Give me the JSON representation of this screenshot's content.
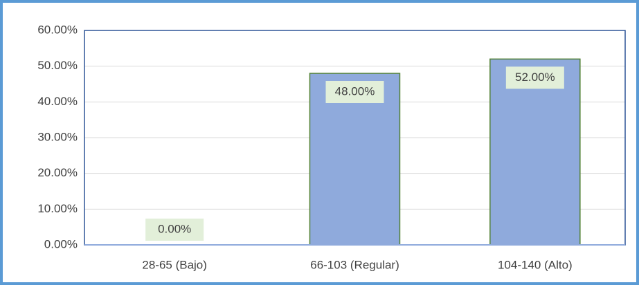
{
  "chart_data": {
    "type": "bar",
    "categories": [
      "28-65 (Bajo)",
      "66-103 (Regular)",
      "104-140 (Alto)"
    ],
    "values": [
      0,
      48,
      52
    ],
    "value_labels": [
      "0.00%",
      "48.00%",
      "52.00%"
    ],
    "color": "#8faadc",
    "ylim": [
      0,
      60
    ],
    "yticks": [
      {
        "value": 0,
        "label": "0.00%"
      },
      {
        "value": 10,
        "label": "10.00%"
      },
      {
        "value": 20,
        "label": "20.00%"
      },
      {
        "value": 30,
        "label": "30.00%"
      },
      {
        "value": 40,
        "label": "40.00%"
      },
      {
        "value": 50,
        "label": "50.00%"
      },
      {
        "value": 60,
        "label": "60.00%"
      }
    ],
    "grid": true
  }
}
